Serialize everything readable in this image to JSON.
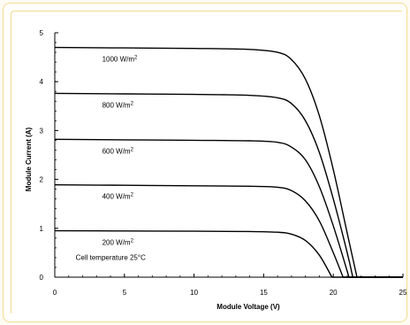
{
  "chart_data": {
    "type": "line",
    "title": "",
    "xlabel": "Module Voltage (V)",
    "ylabel": "Module Current (A)",
    "xlim": [
      0,
      25
    ],
    "ylim": [
      0,
      5
    ],
    "xticks": [
      0,
      5,
      10,
      15,
      20,
      25
    ],
    "yticks": [
      0,
      1,
      2,
      3,
      4,
      5
    ],
    "grid": false,
    "annotation": "Cell temperature 25°C",
    "series": [
      {
        "name": "1000 W/m2",
        "label_text": "1000 W/m",
        "label_sup": "2",
        "x": [
          0,
          5,
          10,
          14,
          16,
          17,
          18,
          19,
          20,
          21,
          21.7
        ],
        "y": [
          4.7,
          4.69,
          4.68,
          4.66,
          4.6,
          4.45,
          4.05,
          3.3,
          2.2,
          0.9,
          0
        ]
      },
      {
        "name": "800 W/m2",
        "label_text": "800 W/m",
        "label_sup": "2",
        "x": [
          0,
          5,
          10,
          14,
          16,
          17,
          18,
          19,
          20,
          21,
          21.4
        ],
        "y": [
          3.76,
          3.75,
          3.74,
          3.72,
          3.67,
          3.55,
          3.2,
          2.55,
          1.6,
          0.5,
          0
        ]
      },
      {
        "name": "600 W/m2",
        "label_text": "600 W/m",
        "label_sup": "2",
        "x": [
          0,
          5,
          10,
          14,
          16,
          17,
          18,
          19,
          20,
          21,
          21.1
        ],
        "y": [
          2.82,
          2.81,
          2.8,
          2.79,
          2.76,
          2.66,
          2.4,
          1.85,
          1.05,
          0.12,
          0
        ]
      },
      {
        "name": "400 W/m2",
        "label_text": "400 W/m",
        "label_sup": "2",
        "x": [
          0,
          5,
          10,
          14,
          16,
          17,
          18,
          19,
          20,
          20.7
        ],
        "y": [
          1.89,
          1.88,
          1.87,
          1.86,
          1.84,
          1.77,
          1.56,
          1.15,
          0.5,
          0
        ]
      },
      {
        "name": "200 W/m2",
        "label_text": "200 W/m",
        "label_sup": "2",
        "x": [
          0,
          5,
          10,
          14,
          16,
          17,
          18,
          19,
          19.9
        ],
        "y": [
          0.95,
          0.945,
          0.94,
          0.935,
          0.92,
          0.88,
          0.75,
          0.45,
          0
        ]
      }
    ]
  }
}
